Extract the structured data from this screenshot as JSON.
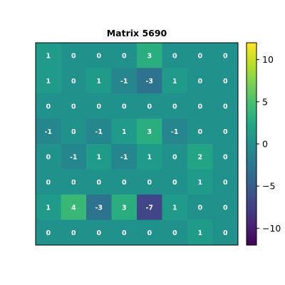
{
  "chart_data": {
    "type": "heatmap",
    "title": "Matrix 5690",
    "matrix": [
      [
        1,
        0,
        0,
        0,
        3,
        0,
        0,
        0
      ],
      [
        1,
        0,
        1,
        -1,
        -3,
        1,
        0,
        0
      ],
      [
        0,
        0,
        0,
        0,
        0,
        0,
        0,
        0
      ],
      [
        -1,
        0,
        -1,
        1,
        3,
        -1,
        0,
        0
      ],
      [
        0,
        -1,
        1,
        -1,
        1,
        0,
        2,
        0
      ],
      [
        0,
        0,
        0,
        0,
        0,
        0,
        1,
        0
      ],
      [
        1,
        4,
        -3,
        3,
        -7,
        1,
        0,
        0
      ],
      [
        0,
        0,
        0,
        0,
        0,
        0,
        1,
        0
      ]
    ],
    "colormap": "viridis",
    "vmin": -12,
    "vmax": 12,
    "colorbar_ticks": [
      10,
      5,
      0,
      -5,
      -10
    ],
    "colorbar_tick_labels": [
      "10",
      "5",
      "0",
      "−5",
      "−10"
    ],
    "show_cell_values": true,
    "axes_ticks_visible": false
  }
}
